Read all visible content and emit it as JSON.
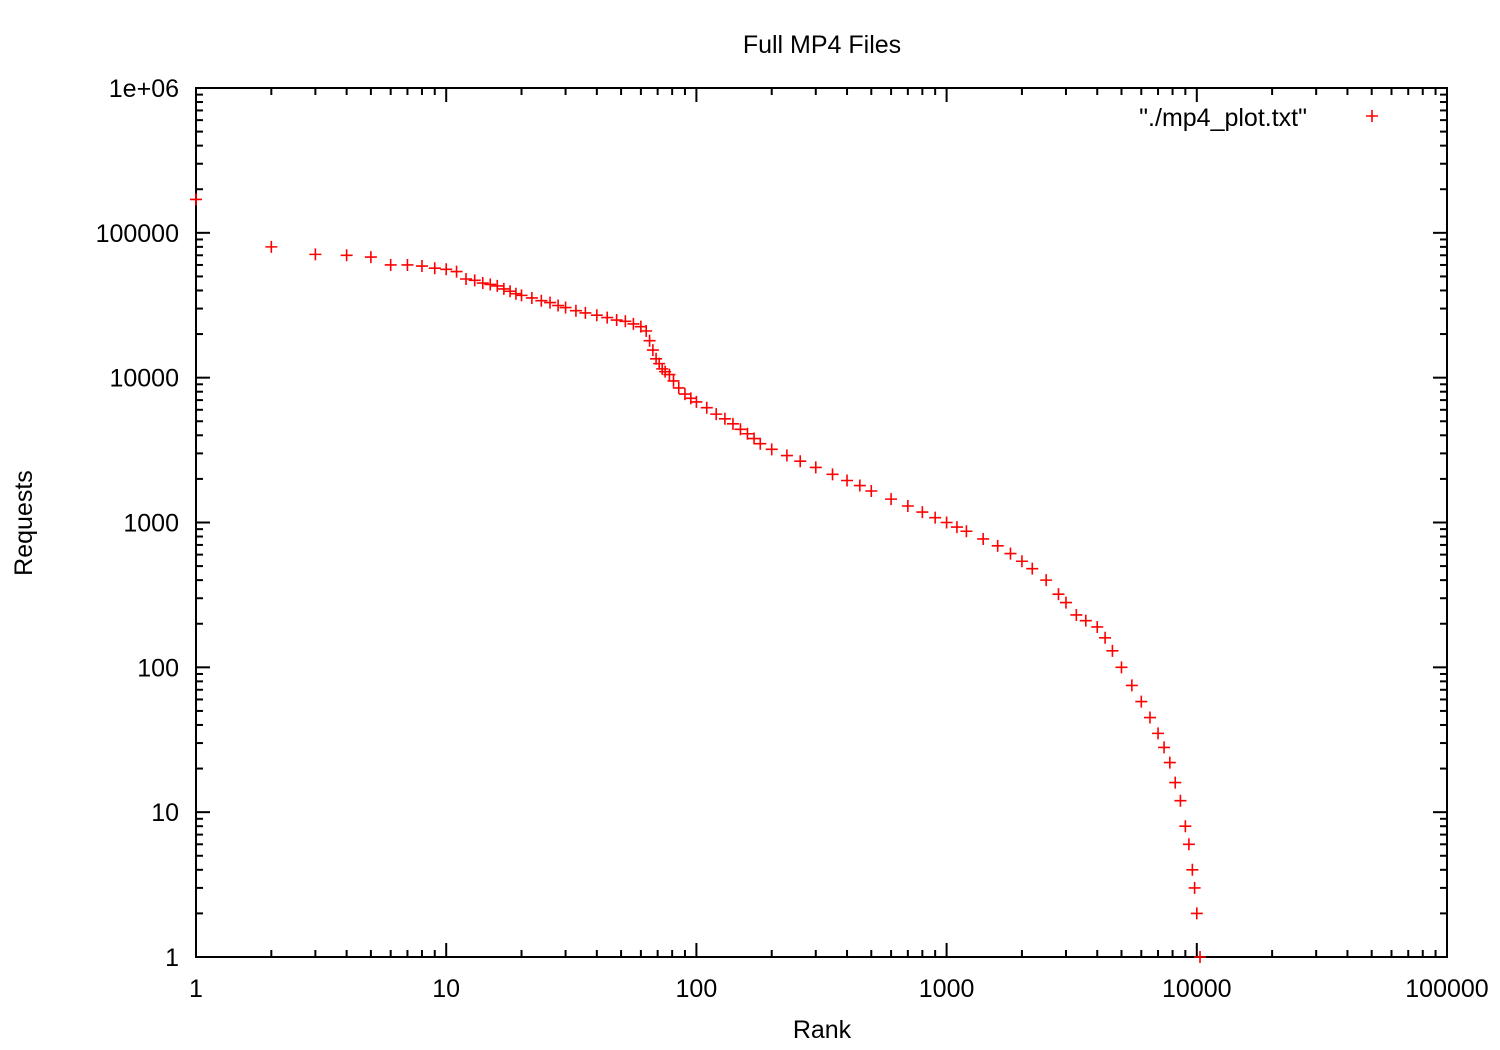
{
  "chart_data": {
    "type": "scatter",
    "title": "Full MP4 Files",
    "xlabel": "Rank",
    "ylabel": "Requests",
    "xscale": "log",
    "yscale": "log",
    "xlim": [
      1,
      100000
    ],
    "ylim": [
      1,
      1000000
    ],
    "x_ticks": [
      1,
      10,
      100,
      1000,
      10000,
      100000
    ],
    "x_tick_labels": [
      "1",
      "10",
      "100",
      "1000",
      "10000",
      "100000"
    ],
    "y_ticks": [
      1,
      10,
      100,
      1000,
      10000,
      100000,
      1000000
    ],
    "y_tick_labels": [
      "1",
      "10",
      "100",
      "1000",
      "10000",
      "100000",
      "1e+06"
    ],
    "grid": false,
    "legend_position": "top-right",
    "marker": "+",
    "color": "#ff0000",
    "series": [
      {
        "name": "\"./mp4_plot.txt\"",
        "points": [
          [
            1,
            170000
          ],
          [
            2,
            80000
          ],
          [
            3,
            71000
          ],
          [
            4,
            70000
          ],
          [
            5,
            68000
          ],
          [
            6,
            60000
          ],
          [
            7,
            60000
          ],
          [
            8,
            59000
          ],
          [
            9,
            57000
          ],
          [
            10,
            56000
          ],
          [
            11,
            54000
          ],
          [
            12,
            48000
          ],
          [
            13,
            47000
          ],
          [
            14,
            45000
          ],
          [
            15,
            44000
          ],
          [
            16,
            43000
          ],
          [
            17,
            41000
          ],
          [
            18,
            39500
          ],
          [
            19,
            38000
          ],
          [
            20,
            37000
          ],
          [
            22,
            35500
          ],
          [
            24,
            34000
          ],
          [
            26,
            33000
          ],
          [
            28,
            31500
          ],
          [
            30,
            30500
          ],
          [
            33,
            29000
          ],
          [
            36,
            28000
          ],
          [
            40,
            27000
          ],
          [
            44,
            26000
          ],
          [
            48,
            25000
          ],
          [
            52,
            24500
          ],
          [
            56,
            23500
          ],
          [
            60,
            22500
          ],
          [
            63,
            21000
          ],
          [
            65,
            18000
          ],
          [
            67,
            15500
          ],
          [
            69,
            13500
          ],
          [
            71,
            12500
          ],
          [
            73,
            11500
          ],
          [
            75,
            11000
          ],
          [
            78,
            10500
          ],
          [
            81,
            9500
          ],
          [
            85,
            8500
          ],
          [
            90,
            7700
          ],
          [
            95,
            7200
          ],
          [
            100,
            6800
          ],
          [
            110,
            6200
          ],
          [
            120,
            5600
          ],
          [
            130,
            5200
          ],
          [
            140,
            4800
          ],
          [
            150,
            4400
          ],
          [
            160,
            4100
          ],
          [
            170,
            3800
          ],
          [
            180,
            3500
          ],
          [
            200,
            3200
          ],
          [
            230,
            2900
          ],
          [
            260,
            2650
          ],
          [
            300,
            2400
          ],
          [
            350,
            2150
          ],
          [
            400,
            1950
          ],
          [
            450,
            1800
          ],
          [
            500,
            1650
          ],
          [
            600,
            1450
          ],
          [
            700,
            1300
          ],
          [
            800,
            1180
          ],
          [
            900,
            1080
          ],
          [
            1000,
            1000
          ],
          [
            1100,
            930
          ],
          [
            1200,
            870
          ],
          [
            1400,
            770
          ],
          [
            1600,
            690
          ],
          [
            1800,
            610
          ],
          [
            2000,
            540
          ],
          [
            2200,
            480
          ],
          [
            2500,
            400
          ],
          [
            2800,
            320
          ],
          [
            3000,
            280
          ],
          [
            3300,
            230
          ],
          [
            3600,
            210
          ],
          [
            4000,
            190
          ],
          [
            4300,
            160
          ],
          [
            4600,
            130
          ],
          [
            5000,
            100
          ],
          [
            5500,
            75
          ],
          [
            6000,
            58
          ],
          [
            6500,
            45
          ],
          [
            7000,
            35
          ],
          [
            7400,
            28
          ],
          [
            7800,
            22
          ],
          [
            8200,
            16
          ],
          [
            8600,
            12
          ],
          [
            9000,
            8
          ],
          [
            9300,
            6
          ],
          [
            9600,
            4
          ],
          [
            9800,
            3
          ],
          [
            10000,
            2
          ],
          [
            10300,
            1
          ]
        ]
      }
    ]
  }
}
